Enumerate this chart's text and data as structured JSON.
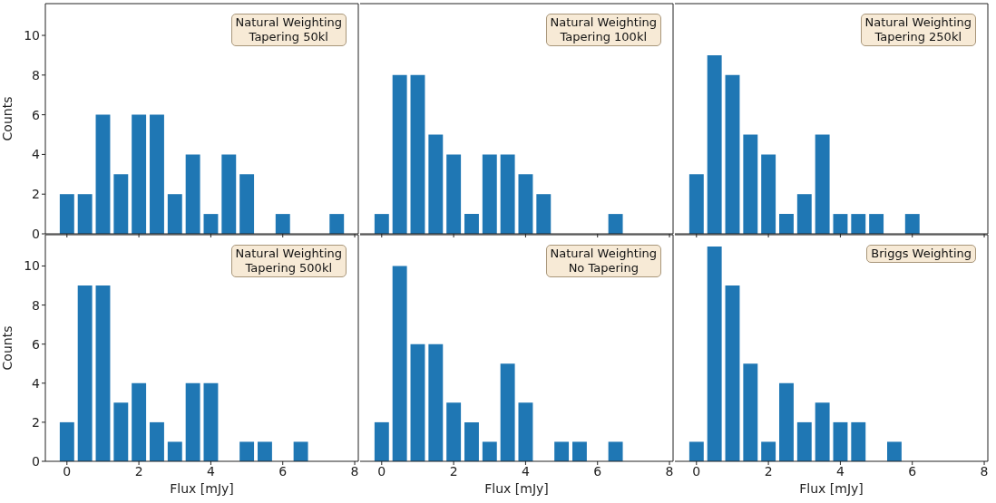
{
  "chart_data": [
    {
      "type": "bar",
      "annotations": [
        "Natural Weighting\nTapering 50kl"
      ],
      "ylabel": "Counts",
      "x": [
        0,
        0.5,
        1,
        1.5,
        2,
        2.5,
        3,
        3.5,
        4,
        4.5,
        5,
        6,
        7.5
      ],
      "values": [
        2,
        2,
        6,
        3,
        6,
        6,
        2,
        4,
        1,
        4,
        3,
        1,
        1
      ],
      "color": "#1f77b4",
      "xlim": [
        -0.6,
        8.1
      ],
      "xticks": [
        0,
        2,
        4,
        6,
        8
      ],
      "ylim": [
        0,
        11.6
      ],
      "yticks": [
        0,
        2,
        4,
        6,
        8,
        10
      ],
      "tick_labels": "y"
    },
    {
      "type": "bar",
      "annotations": [
        "Natural Weighting\nTapering 100kl"
      ],
      "x": [
        0,
        0.5,
        1,
        1.5,
        2,
        2.5,
        3,
        3.5,
        4,
        4.5,
        6.5
      ],
      "values": [
        1,
        8,
        8,
        5,
        4,
        1,
        4,
        4,
        3,
        2,
        1
      ],
      "color": "#1f77b4",
      "xlim": [
        -0.6,
        8.1
      ],
      "xticks": [
        0,
        2,
        4,
        6,
        8
      ],
      "ylim": [
        0,
        11.6
      ],
      "yticks": [
        0,
        2,
        4,
        6,
        8,
        10
      ],
      "tick_labels": false
    },
    {
      "type": "bar",
      "annotations": [
        "Natural Weighting\nTapering 250kl"
      ],
      "x": [
        0,
        0.5,
        1,
        1.5,
        2,
        2.5,
        3,
        3.5,
        4,
        4.5,
        5,
        6
      ],
      "values": [
        3,
        9,
        8,
        5,
        4,
        1,
        2,
        5,
        1,
        1,
        1,
        1
      ],
      "color": "#1f77b4",
      "xlim": [
        -0.6,
        8.1
      ],
      "xticks": [
        0,
        2,
        4,
        6,
        8
      ],
      "ylim": [
        0,
        11.6
      ],
      "yticks": [
        0,
        2,
        4,
        6,
        8,
        10
      ],
      "tick_labels": false
    },
    {
      "type": "bar",
      "annotations": [
        "Natural Weighting\nTapering 500kl"
      ],
      "xlabel": "Flux [mJy]",
      "ylabel": "Counts",
      "x": [
        0,
        0.5,
        1,
        1.5,
        2,
        2.5,
        3,
        3.5,
        4,
        5,
        5.5,
        6.5
      ],
      "values": [
        2,
        9,
        9,
        3,
        4,
        2,
        1,
        4,
        4,
        1,
        1,
        1
      ],
      "color": "#1f77b4",
      "xlim": [
        -0.6,
        8.1
      ],
      "xticks": [
        0,
        2,
        4,
        6,
        8
      ],
      "ylim": [
        0,
        11.6
      ],
      "yticks": [
        0,
        2,
        4,
        6,
        8,
        10
      ]
    },
    {
      "type": "bar",
      "annotations": [
        "Natural Weighting\nNo Tapering"
      ],
      "xlabel": "Flux [mJy]",
      "x": [
        0,
        0.5,
        1,
        1.5,
        2,
        2.5,
        3,
        3.5,
        4,
        5,
        5.5,
        6.5
      ],
      "values": [
        2,
        10,
        6,
        6,
        3,
        2,
        1,
        5,
        3,
        1,
        1,
        1
      ],
      "color": "#1f77b4",
      "xlim": [
        -0.6,
        8.1
      ],
      "xticks": [
        0,
        2,
        4,
        6,
        8
      ],
      "ylim": [
        0,
        11.6
      ],
      "yticks": [
        0,
        2,
        4,
        6,
        8,
        10
      ],
      "tick_labels": "x"
    },
    {
      "type": "bar",
      "annotations": [
        "Briggs Weighting"
      ],
      "xlabel": "Flux [mJy]",
      "x": [
        0,
        0.5,
        1,
        1.5,
        2,
        2.5,
        3,
        3.5,
        4,
        4.5,
        5.5
      ],
      "values": [
        1,
        11,
        9,
        5,
        1,
        4,
        2,
        3,
        2,
        2,
        1
      ],
      "color": "#1f77b4",
      "xlim": [
        -0.6,
        8.1
      ],
      "xticks": [
        0,
        2,
        4,
        6,
        8
      ],
      "ylim": [
        0,
        11.6
      ],
      "yticks": [
        0,
        2,
        4,
        6,
        8,
        10
      ],
      "tick_labels": "x"
    }
  ]
}
